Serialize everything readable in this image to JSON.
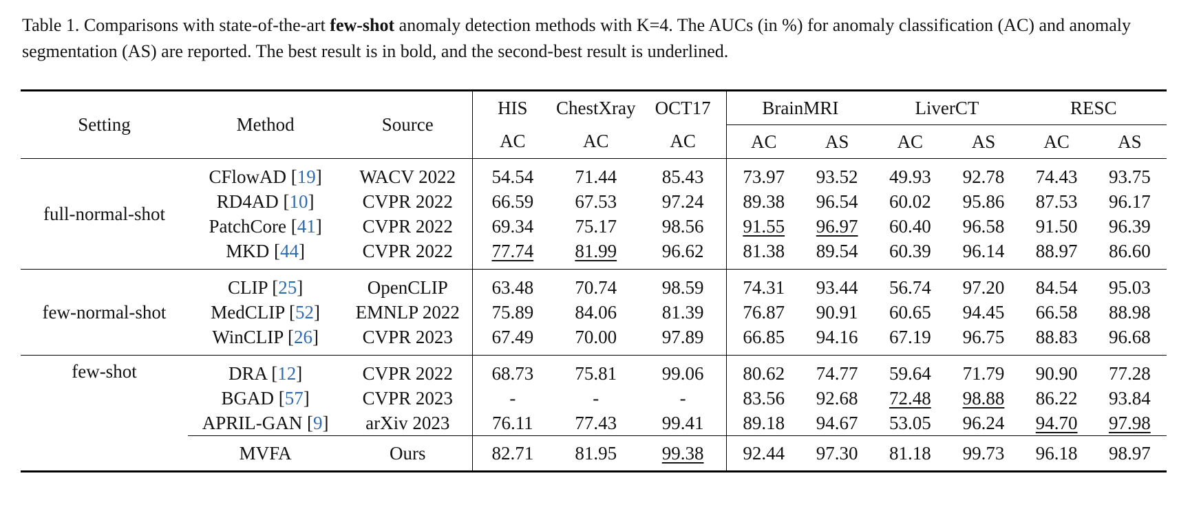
{
  "caption": {
    "label": "Table 1.",
    "part1": "Comparisons with state-of-the-art",
    "bold": "few-shot",
    "part2": "anomaly detection methods with K=4. The AUCs (in %) for anomaly classification (AC) and anomaly segmentation (AS) are reported. The best result is in bold, and the second-best result is underlined."
  },
  "headers": {
    "setting": "Setting",
    "method": "Method",
    "source": "Source",
    "datasets": [
      "HIS",
      "ChestXray",
      "OCT17",
      "BrainMRI",
      "LiverCT",
      "RESC"
    ],
    "metrics": [
      "AC",
      "AC",
      "AC",
      "AC",
      "AS",
      "AC",
      "AS",
      "AC",
      "AS"
    ]
  },
  "groups": [
    {
      "setting": "full-normal-shot",
      "rows": [
        {
          "method": "CFlowAD",
          "ref": "19",
          "source": "WACV 2022",
          "values": [
            "54.54",
            "71.44",
            "85.43",
            "73.97",
            "93.52",
            "49.93",
            "92.78",
            "74.43",
            "93.75"
          ],
          "styles": [
            "",
            "",
            "",
            "",
            "",
            "",
            "",
            "",
            ""
          ]
        },
        {
          "method": "RD4AD",
          "ref": "10",
          "source": "CVPR 2022",
          "values": [
            "66.59",
            "67.53",
            "97.24",
            "89.38",
            "96.54",
            "60.02",
            "95.86",
            "87.53",
            "96.17"
          ],
          "styles": [
            "",
            "",
            "",
            "",
            "",
            "",
            "",
            "",
            ""
          ]
        },
        {
          "method": "PatchCore",
          "ref": "41",
          "source": "CVPR 2022",
          "values": [
            "69.34",
            "75.17",
            "98.56",
            "91.55",
            "96.97",
            "60.40",
            "96.58",
            "91.50",
            "96.39"
          ],
          "styles": [
            "",
            "",
            "",
            "second",
            "second",
            "",
            "",
            "",
            ""
          ]
        },
        {
          "method": "MKD",
          "ref": "44",
          "source": "CVPR 2022",
          "values": [
            "77.74",
            "81.99",
            "96.62",
            "81.38",
            "89.54",
            "60.39",
            "96.14",
            "88.97",
            "86.60"
          ],
          "styles": [
            "second",
            "second",
            "",
            "",
            "",
            "",
            "",
            "",
            ""
          ]
        }
      ]
    },
    {
      "setting": "few-normal-shot",
      "rows": [
        {
          "method": "CLIP",
          "ref": "25",
          "source": "OpenCLIP",
          "values": [
            "63.48",
            "70.74",
            "98.59",
            "74.31",
            "93.44",
            "56.74",
            "97.20",
            "84.54",
            "95.03"
          ],
          "styles": [
            "",
            "",
            "",
            "",
            "",
            "",
            "",
            "",
            ""
          ]
        },
        {
          "method": "MedCLIP",
          "ref": "52",
          "source": "EMNLP 2022",
          "values": [
            "75.89",
            "84.06",
            "81.39",
            "76.87",
            "90.91",
            "60.65",
            "94.45",
            "66.58",
            "88.98"
          ],
          "styles": [
            "",
            "best",
            "",
            "",
            "",
            "",
            "",
            "",
            ""
          ]
        },
        {
          "method": "WinCLIP",
          "ref": "26",
          "source": "CVPR 2023",
          "values": [
            "67.49",
            "70.00",
            "97.89",
            "66.85",
            "94.16",
            "67.19",
            "96.75",
            "88.83",
            "96.68"
          ],
          "styles": [
            "",
            "",
            "",
            "",
            "",
            "",
            "",
            "",
            ""
          ]
        }
      ]
    },
    {
      "setting": "few-shot",
      "rows": [
        {
          "method": "DRA",
          "ref": "12",
          "source": "CVPR 2022",
          "values": [
            "68.73",
            "75.81",
            "99.06",
            "80.62",
            "74.77",
            "59.64",
            "71.79",
            "90.90",
            "77.28"
          ],
          "styles": [
            "",
            "",
            "",
            "",
            "",
            "",
            "",
            "",
            ""
          ]
        },
        {
          "method": "BGAD",
          "ref": "57",
          "source": "CVPR 2023",
          "values": [
            "-",
            "-",
            "-",
            "83.56",
            "92.68",
            "72.48",
            "98.88",
            "86.22",
            "93.84"
          ],
          "styles": [
            "",
            "",
            "",
            "",
            "",
            "second",
            "second",
            "",
            ""
          ]
        },
        {
          "method": "APRIL-GAN",
          "ref": "9",
          "source": "arXiv 2023",
          "values": [
            "76.11",
            "77.43",
            "99.41",
            "89.18",
            "94.67",
            "53.05",
            "96.24",
            "94.70",
            "97.98"
          ],
          "styles": [
            "",
            "",
            "best",
            "",
            "",
            "",
            "",
            "second",
            "second"
          ]
        }
      ],
      "ours": {
        "method": "MVFA",
        "source": "Ours",
        "values": [
          "82.71",
          "81.95",
          "99.38",
          "92.44",
          "97.30",
          "81.18",
          "99.73",
          "96.18",
          "98.97"
        ],
        "styles": [
          "best",
          "",
          "second",
          "best",
          "best",
          "best",
          "best",
          "best",
          "best"
        ]
      }
    }
  ]
}
